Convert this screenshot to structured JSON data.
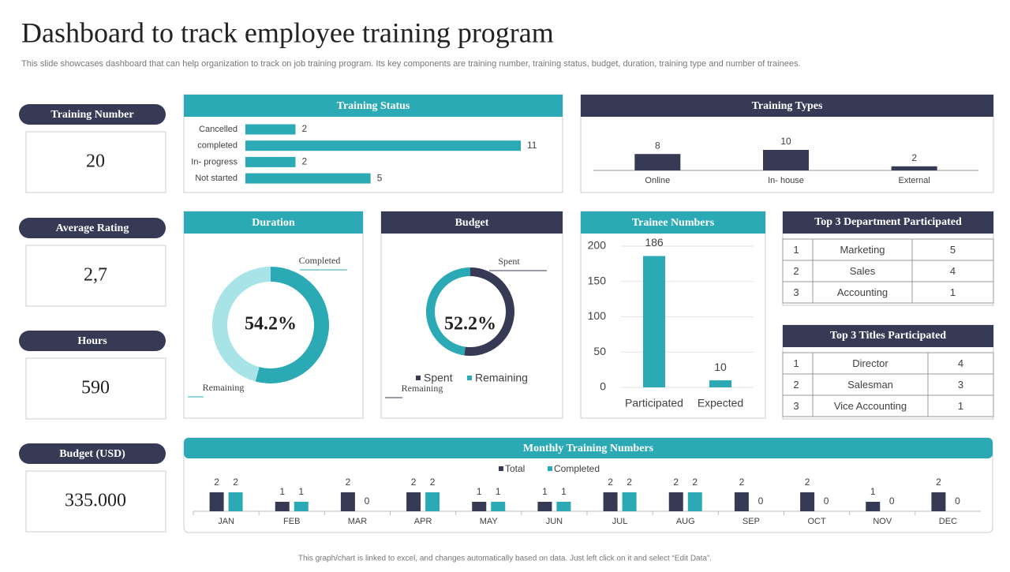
{
  "header": {
    "title": "Dashboard to track employee training program",
    "subtitle": "This slide showcases dashboard that can help organization to track on job training program. Its key components are training number, training status, budget, duration, training type and number of trainees."
  },
  "kpis": [
    {
      "label": "Training Number",
      "value": 20
    },
    {
      "label": "Average Rating",
      "value": "2,7"
    },
    {
      "label": "Hours",
      "value": 590
    },
    {
      "label": "Budget (USD)",
      "value": "335.000"
    }
  ],
  "chart_data": [
    {
      "type": "hbar",
      "title": "Training Status",
      "categories": [
        "Cancelled",
        "completed",
        "In- progress",
        "Not started"
      ],
      "values": [
        2,
        11,
        2,
        5
      ],
      "color": "#2ba9b4"
    },
    {
      "type": "bar",
      "title": "Training Types",
      "categories": [
        "Online",
        "In- house",
        "External"
      ],
      "values": [
        8,
        10,
        2
      ],
      "color": "#363a54"
    },
    {
      "type": "donut",
      "title": "Duration",
      "categories": [
        "Completed",
        "Remaining"
      ],
      "values": [
        54.2,
        45.8
      ],
      "colors": [
        "#2ba9b4",
        "#a8e3e8"
      ],
      "center_label": "54.2%"
    },
    {
      "type": "donut",
      "title": "Budget",
      "categories": [
        "Spent",
        "Remaining"
      ],
      "values": [
        52.2,
        47.8
      ],
      "colors": [
        "#363a54",
        "#2ba9b4"
      ],
      "center_label": "52.2%",
      "legend": true
    },
    {
      "type": "bar",
      "title": "Trainee Numbers",
      "categories": [
        "Participated",
        "Expected"
      ],
      "values": [
        186,
        10
      ],
      "color": "#2ba9b4",
      "ylim": [
        0,
        200
      ],
      "yticks": [
        0,
        50,
        100,
        150,
        200
      ],
      "grid": true
    },
    {
      "type": "bar",
      "title": "Monthly Training Numbers",
      "categories": [
        "JAN",
        "FEB",
        "MAR",
        "APR",
        "MAY",
        "JUN",
        "JUL",
        "AUG",
        "SEP",
        "OCT",
        "NOV",
        "DEC"
      ],
      "series": [
        {
          "name": "Total",
          "color": "#363a54",
          "values": [
            2,
            1,
            2,
            2,
            1,
            1,
            2,
            2,
            2,
            2,
            1,
            2
          ]
        },
        {
          "name": "Completed",
          "color": "#2ba9b4",
          "values": [
            2,
            1,
            0,
            2,
            1,
            1,
            2,
            2,
            0,
            0,
            0,
            0
          ]
        }
      ],
      "legend": true
    }
  ],
  "tables": [
    {
      "title": "Top  3 Department Participated",
      "rows": [
        [
          1,
          "Marketing",
          5
        ],
        [
          2,
          "Sales",
          4
        ],
        [
          3,
          "Accounting",
          1
        ]
      ]
    },
    {
      "title": "Top  3 Titles Participated",
      "rows": [
        [
          1,
          "Director",
          4
        ],
        [
          2,
          "Salesman",
          3
        ],
        [
          3,
          "Vice Accounting",
          1
        ]
      ]
    }
  ],
  "footer": "This graph/chart is linked to excel, and changes automatically based on data. Just left click on it and select “Edit Data”."
}
